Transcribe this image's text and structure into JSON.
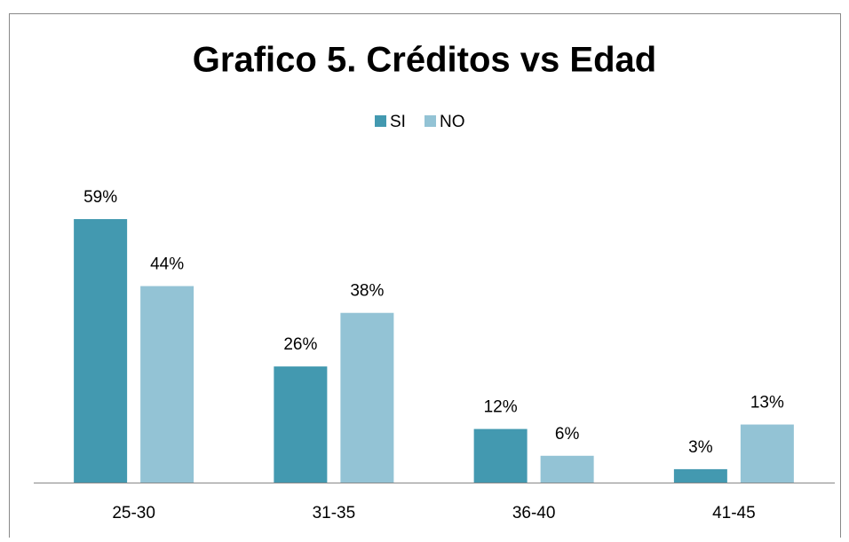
{
  "chart_data": {
    "type": "bar",
    "title": "Grafico 5. Créditos vs Edad",
    "categories": [
      "25-30",
      "31-35",
      "36-40",
      "41-45"
    ],
    "series": [
      {
        "name": "SI",
        "color": "#4399b0",
        "values": [
          59,
          26,
          12,
          3
        ],
        "value_labels": [
          "59%",
          "26%",
          "12%",
          "3%"
        ]
      },
      {
        "name": "NO",
        "color": "#93c3d5",
        "values": [
          44,
          38,
          6,
          13
        ],
        "value_labels": [
          "44%",
          "38%",
          "6%",
          "13%"
        ]
      }
    ],
    "legend": "top"
  }
}
